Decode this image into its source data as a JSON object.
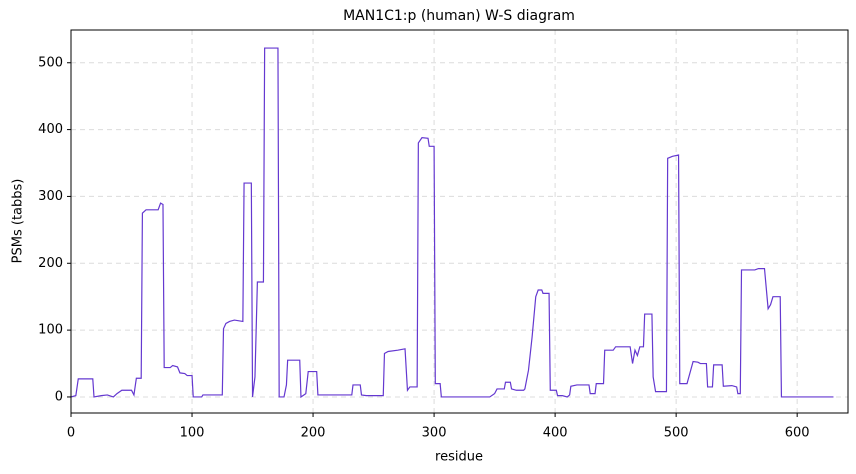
{
  "chart_data": {
    "type": "line",
    "title": "MAN1C1:p (human) W-S diagram",
    "xlabel": "residue",
    "ylabel": "PSMs (tabbs)",
    "x": [
      0,
      4,
      6,
      18,
      19,
      25,
      30,
      35,
      38,
      42,
      50,
      52,
      54,
      58,
      59,
      62,
      72,
      74,
      76,
      77,
      82,
      84,
      88,
      90,
      94,
      96,
      100,
      101,
      108,
      109,
      125,
      126,
      128,
      131,
      135,
      142,
      143,
      149,
      150,
      152,
      154,
      159,
      160,
      171,
      172,
      176,
      178,
      179,
      189,
      190,
      194,
      196,
      203,
      204,
      232,
      233,
      239,
      240,
      244,
      258,
      259,
      262,
      270,
      276,
      278,
      280,
      286,
      287,
      290,
      295,
      296,
      300,
      301,
      305,
      306,
      346,
      350,
      352,
      358,
      359,
      363,
      364,
      368,
      374,
      375,
      378,
      381,
      384,
      386,
      389,
      390,
      395,
      396,
      401,
      402,
      406,
      410,
      412,
      413,
      418,
      428,
      429,
      433,
      434,
      440,
      441,
      448,
      450,
      462,
      464,
      466,
      468,
      470,
      473,
      474,
      480,
      481,
      483,
      492,
      493,
      497,
      502,
      503,
      509,
      514,
      518,
      520,
      525,
      526,
      530,
      531,
      538,
      539,
      546,
      550,
      551,
      553,
      554,
      565,
      568,
      573,
      576,
      578,
      580,
      586,
      587,
      630
    ],
    "y": [
      0,
      2,
      27,
      27,
      0,
      2,
      3,
      0,
      5,
      10,
      10,
      3,
      28,
      28,
      275,
      280,
      280,
      290,
      288,
      44,
      44,
      47,
      45,
      36,
      35,
      32,
      32,
      0,
      0,
      3,
      3,
      102,
      110,
      113,
      115,
      113,
      320,
      320,
      0,
      30,
      172,
      172,
      522,
      522,
      0,
      0,
      18,
      55,
      55,
      0,
      5,
      38,
      38,
      3,
      3,
      18,
      18,
      3,
      2,
      2,
      65,
      68,
      70,
      72,
      10,
      15,
      15,
      380,
      388,
      387,
      375,
      375,
      20,
      20,
      0,
      0,
      5,
      12,
      12,
      22,
      22,
      12,
      10,
      10,
      12,
      40,
      90,
      150,
      160,
      160,
      155,
      155,
      10,
      10,
      2,
      2,
      0,
      3,
      16,
      18,
      18,
      5,
      5,
      20,
      20,
      70,
      70,
      75,
      75,
      50,
      70,
      62,
      75,
      75,
      124,
      124,
      30,
      8,
      8,
      357,
      360,
      362,
      20,
      20,
      53,
      52,
      50,
      50,
      15,
      15,
      48,
      48,
      16,
      17,
      15,
      5,
      5,
      190,
      190,
      192,
      192,
      132,
      138,
      150,
      150,
      0,
      0
    ],
    "color": "#6438d0",
    "xlim": [
      0,
      642
    ],
    "ylim": [
      -24,
      549
    ],
    "xticks": [
      0,
      100,
      200,
      300,
      400,
      500,
      600
    ],
    "yticks": [
      0,
      100,
      200,
      300,
      400,
      500
    ],
    "grid": true
  }
}
